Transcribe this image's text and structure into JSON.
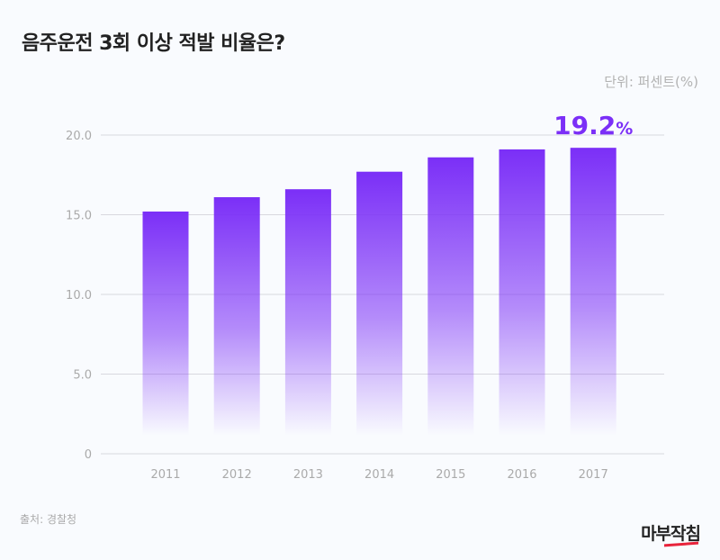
{
  "chart_data": {
    "type": "bar",
    "title": "음주운전 3회 이상 적발 비율은?",
    "unit_label": "단위: 퍼센트(%)",
    "source": "출처: 경찰청",
    "categories": [
      "2011",
      "2012",
      "2013",
      "2014",
      "2015",
      "2016",
      "2017"
    ],
    "values": [
      15.2,
      16.1,
      16.6,
      17.7,
      18.6,
      19.1,
      19.2
    ],
    "ylim": [
      0,
      20
    ],
    "yticks": [
      0,
      5,
      10,
      15,
      20
    ],
    "ytick_labels": [
      "0",
      "5.0",
      "10.0",
      "15.0",
      "20.0"
    ],
    "grid": true,
    "annotation": {
      "category": "2017",
      "text": "19.2",
      "suffix": "%"
    },
    "colors": {
      "bar": "#7b2ff7",
      "annotation": "#7b2ff7",
      "grid": "#d8d8df",
      "tick": "#aaaaaa"
    }
  },
  "logo": "마부작침"
}
